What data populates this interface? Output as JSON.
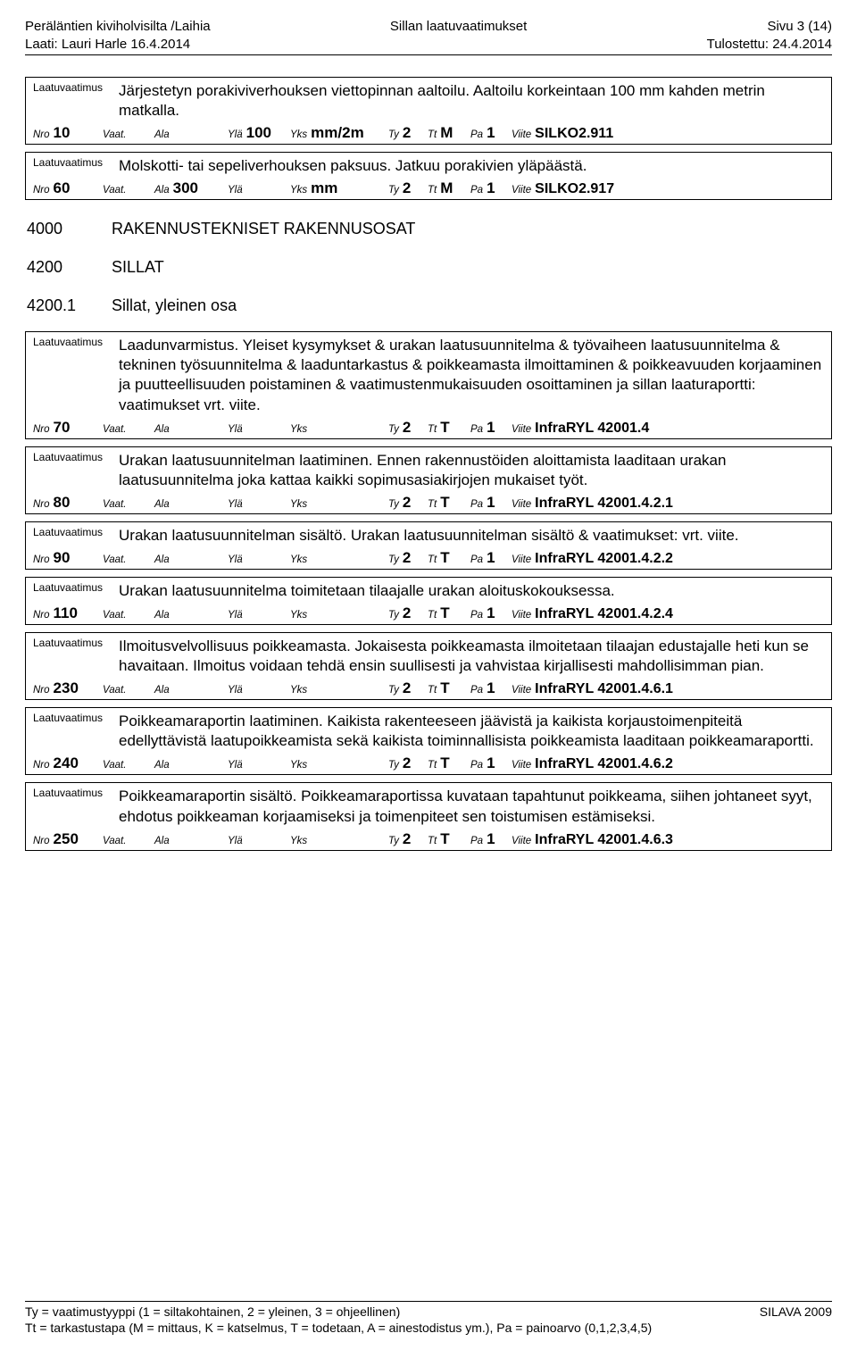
{
  "header": {
    "title_left1": "Peräläntien kiviholvisilta /Laihia",
    "title_left2": "Laati: Lauri Harle 16.4.2014",
    "title_center": "Sillan laatuvaatimukset",
    "title_right1": "Sivu 3 (14)",
    "title_right2": "Tulostettu: 24.4.2014"
  },
  "labels": {
    "laatu": "Laatuvaatimus",
    "nro": "Nro",
    "vaat": "Vaat.",
    "ala": "Ala",
    "yla": "Ylä",
    "yks": "Yks",
    "ty": "Ty",
    "tt": "Tt",
    "pa": "Pa",
    "viite": "Viite"
  },
  "sections": [
    {
      "code": "4000",
      "title": "RAKENNUSTEKNISET RAKENNUSOSAT"
    },
    {
      "code": "4200",
      "title": "SILLAT"
    },
    {
      "code": "4200.1",
      "title": "Sillat, yleinen osa"
    }
  ],
  "entries_top": [
    {
      "text": "Järjestetyn porakiviverhouksen viettopinnan aaltoilu. Aaltoilu korkeintaan 100 mm kahden metrin matkalla.",
      "nro": "10",
      "ala": "",
      "yla": "100",
      "yks": "mm/2m",
      "ty": "2",
      "tt": "M",
      "pa": "1",
      "viite": "SILKO2.911"
    },
    {
      "text": "Molskotti- tai sepeliverhouksen paksuus. Jatkuu porakivien yläpäästä.",
      "nro": "60",
      "ala": "300",
      "yla": "",
      "yks": "mm",
      "ty": "2",
      "tt": "M",
      "pa": "1",
      "viite": "SILKO2.917"
    }
  ],
  "entries": [
    {
      "text": "Laadunvarmistus. Yleiset kysymykset & urakan laatusuunnitelma & työvaiheen laatusuunnitelma & tekninen työsuunnitelma & laaduntarkastus & poikkeamasta ilmoittaminen & poikkeavuuden korjaaminen ja puutteellisuuden poistaminen & vaatimustenmukaisuuden osoittaminen ja sillan laaturaportti: vaatimukset vrt. viite.",
      "nro": "70",
      "ala": "",
      "yla": "",
      "yks": "",
      "ty": "2",
      "tt": "T",
      "pa": "1",
      "viite": "InfraRYL 42001.4"
    },
    {
      "text": "Urakan laatusuunnitelman laatiminen. Ennen rakennustöiden aloittamista laaditaan urakan laatusuunnitelma joka kattaa kaikki sopimusasiakirjojen mukaiset työt.",
      "nro": "80",
      "ala": "",
      "yla": "",
      "yks": "",
      "ty": "2",
      "tt": "T",
      "pa": "1",
      "viite": "InfraRYL 42001.4.2.1"
    },
    {
      "text": "Urakan laatusuunnitelman sisältö. Urakan laatusuunnitelman sisältö & vaatimukset: vrt. viite.",
      "nro": "90",
      "ala": "",
      "yla": "",
      "yks": "",
      "ty": "2",
      "tt": "T",
      "pa": "1",
      "viite": "InfraRYL 42001.4.2.2"
    },
    {
      "text": "Urakan laatusuunnitelma toimitetaan tilaajalle urakan aloituskokouksessa.",
      "nro": "110",
      "ala": "",
      "yla": "",
      "yks": "",
      "ty": "2",
      "tt": "T",
      "pa": "1",
      "viite": "InfraRYL 42001.4.2.4"
    },
    {
      "text": "Ilmoitusvelvollisuus poikkeamasta. Jokaisesta poikkeamasta ilmoitetaan tilaajan edustajalle heti kun se havaitaan. Ilmoitus voidaan tehdä ensin suullisesti ja vahvistaa kirjallisesti mahdollisimman pian.",
      "nro": "230",
      "ala": "",
      "yla": "",
      "yks": "",
      "ty": "2",
      "tt": "T",
      "pa": "1",
      "viite": "InfraRYL 42001.4.6.1"
    },
    {
      "text": "Poikkeamaraportin laatiminen. Kaikista rakenteeseen jäävistä ja kaikista korjaustoimenpiteitä edellyttävistä laatupoikkeamista sekä kaikista toiminnallisista poikkeamista laaditaan poikkeamaraportti.",
      "nro": "240",
      "ala": "",
      "yla": "",
      "yks": "",
      "ty": "2",
      "tt": "T",
      "pa": "1",
      "viite": "InfraRYL 42001.4.6.2"
    },
    {
      "text": "Poikkeamaraportin sisältö. Poikkeamaraportissa kuvataan tapahtunut poikkeama, siihen johtaneet syyt, ehdotus poikkeaman korjaamiseksi ja toimenpiteet sen toistumisen estämiseksi.",
      "nro": "250",
      "ala": "",
      "yla": "",
      "yks": "",
      "ty": "2",
      "tt": "T",
      "pa": "1",
      "viite": "InfraRYL 42001.4.6.3"
    }
  ],
  "footer": {
    "left1": "Ty = vaatimustyyppi (1 = siltakohtainen, 2 = yleinen, 3 = ohjeellinen)",
    "left2": "Tt = tarkastustapa (M = mittaus, K = katselmus, T = todetaan, A = ainestodistus ym.), Pa = painoarvo (0,1,2,3,4,5)",
    "right": "SILAVA 2009"
  }
}
